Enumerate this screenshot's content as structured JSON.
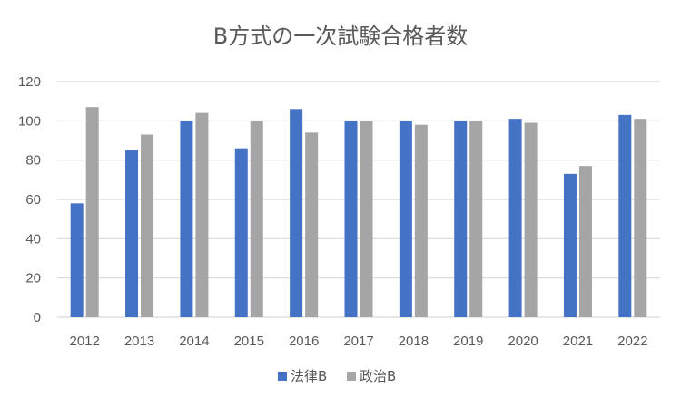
{
  "chart_data": {
    "type": "bar",
    "title": "B方式の一次試験合格者数",
    "xlabel": "",
    "ylabel": "",
    "categories": [
      "2012",
      "2013",
      "2014",
      "2015",
      "2016",
      "2017",
      "2018",
      "2019",
      "2020",
      "2021",
      "2022"
    ],
    "series": [
      {
        "name": "法律B",
        "color": "#4472C4",
        "values": [
          58,
          85,
          100,
          86,
          106,
          100,
          100,
          100,
          101,
          73,
          103
        ]
      },
      {
        "name": "政治B",
        "color": "#A5A5A5",
        "values": [
          107,
          93,
          104,
          100,
          94,
          100,
          98,
          100,
          99,
          77,
          101
        ]
      }
    ],
    "ylim": [
      0,
      120
    ],
    "yticks": [
      "0",
      "20",
      "40",
      "60",
      "80",
      "100",
      "120"
    ],
    "grid": true,
    "legend_position": "bottom"
  }
}
